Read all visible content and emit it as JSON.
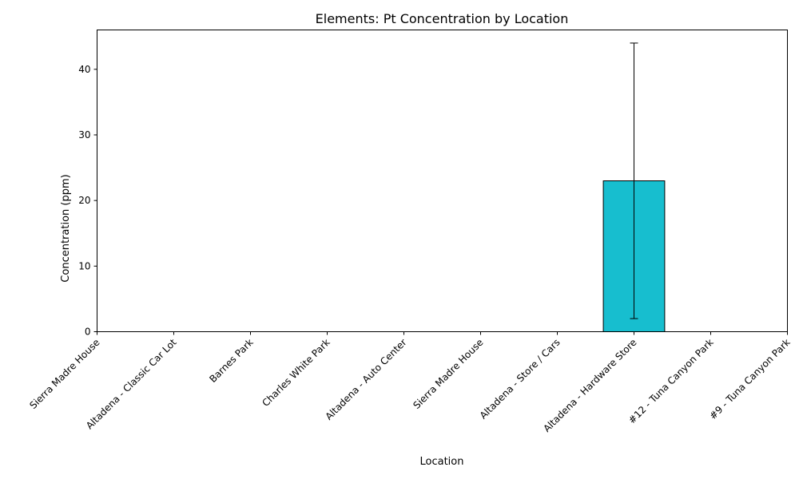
{
  "chart_data": {
    "type": "bar",
    "title": "Elements: Pt Concentration by Location",
    "xlabel": "Location",
    "ylabel": "Concentration (ppm)",
    "ylim": [
      0,
      46
    ],
    "yticks": [
      0,
      10,
      20,
      30,
      40
    ],
    "categories": [
      "Sierra Madre House",
      "Altadena - Classic Car Lot",
      "Barnes Park",
      "Charles White Park",
      "Altadena - Auto Center",
      "Sierra Madre House",
      "Altadena - Store / Cars",
      "Altadena - Hardware Store",
      "#12 - Tuna Canyon Park",
      "#9 - Tuna Canyon Park"
    ],
    "values": [
      0,
      0,
      0,
      0,
      0,
      0,
      0,
      23,
      0,
      0
    ],
    "errors": [
      0,
      0,
      0,
      0,
      0,
      0,
      0,
      21,
      0,
      0
    ],
    "bar_color": "#17becf",
    "edge_color": "#000000",
    "grid": false,
    "legend": false
  }
}
